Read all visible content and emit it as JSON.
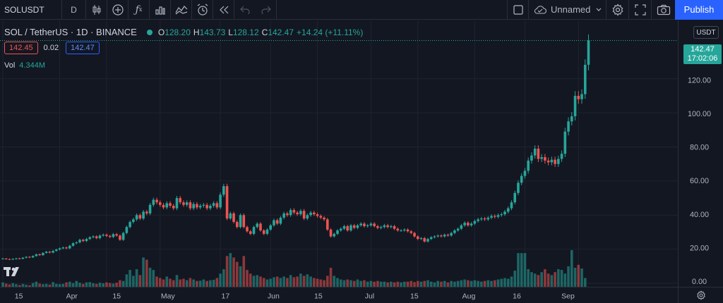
{
  "toolbar": {
    "symbol": "SOLUSDT",
    "interval": "D",
    "icons": [
      "candles-icon",
      "plus-circle-icon",
      "fx-icon",
      "bar-chart-icon",
      "compare-icon",
      "alert-icon",
      "replay-icon",
      "undo-icon",
      "redo-icon"
    ],
    "layout_name": "Unnamed",
    "publish_label": "Publish"
  },
  "legend": {
    "title": "SOL / TetherUS · 1D · BINANCE",
    "open_label": "O",
    "open": "128.20",
    "high_label": "H",
    "high": "143.73",
    "low_label": "L",
    "low": "128.12",
    "close_label": "C",
    "close": "142.47",
    "change": "+14.24 (+11.11%)"
  },
  "quotes": {
    "bid": "142.45",
    "spread": "0.02",
    "ask": "142.47"
  },
  "volume": {
    "label": "Vol",
    "value": "4.344M"
  },
  "price_scale": {
    "currency": "USDT",
    "last_price": "142.47",
    "countdown": "17:02:06"
  },
  "colors": {
    "up": "#26a69a",
    "down": "#ef5350",
    "accent": "#2962ff",
    "bg": "#131722",
    "grid": "#1f2330"
  },
  "chart_data": {
    "type": "candlestick",
    "title": "SOL / TetherUS · 1D · BINANCE",
    "y_ticks": [
      "0.00",
      "20.00",
      "40.00",
      "60.00",
      "80.00",
      "100.00",
      "120.00"
    ],
    "ylim": [
      0,
      153
    ],
    "x_ticks": [
      {
        "label": "15",
        "i": 0
      },
      {
        "label": "Apr",
        "i": 17
      },
      {
        "label": "15",
        "i": 31
      },
      {
        "label": "May",
        "i": 47
      },
      {
        "label": "17",
        "i": 65
      },
      {
        "label": "Jun",
        "i": 80
      },
      {
        "label": "15",
        "i": 94
      },
      {
        "label": "Jul",
        "i": 110
      },
      {
        "label": "15",
        "i": 124
      },
      {
        "label": "Aug",
        "i": 141
      },
      {
        "label": "16",
        "i": 156
      },
      {
        "label": "Sep",
        "i": 172
      }
    ],
    "grid": true,
    "closes": [
      14.5,
      14.2,
      14.0,
      14.3,
      14.6,
      14.4,
      15.0,
      15.5,
      15.2,
      16.0,
      17.0,
      16.5,
      17.8,
      18.5,
      18.0,
      19.0,
      19.8,
      20.5,
      21.0,
      20.5,
      22.0,
      23.5,
      24.0,
      25.5,
      24.8,
      26.0,
      27.0,
      27.5,
      26.5,
      28.0,
      28.5,
      27.8,
      27.2,
      28.8,
      28.0,
      25.5,
      29.5,
      33.0,
      36.0,
      37.5,
      40.0,
      38.0,
      42.0,
      41.0,
      46.0,
      49.0,
      47.5,
      46.0,
      44.5,
      47.0,
      45.5,
      44.0,
      50.0,
      47.5,
      46.0,
      47.5,
      44.0,
      46.5,
      44.5,
      45.5,
      46.0,
      44.0,
      45.5,
      47.0,
      44.5,
      52.0,
      57.0,
      38.0,
      41.0,
      36.0,
      33.0,
      40.0,
      33.0,
      30.5,
      29.0,
      33.0,
      35.0,
      31.0,
      29.0,
      31.5,
      34.0,
      37.0,
      35.0,
      38.5,
      41.0,
      40.0,
      43.0,
      41.5,
      40.5,
      42.5,
      38.0,
      40.0,
      41.5,
      40.5,
      39.5,
      38.5,
      37.5,
      31.5,
      27.5,
      29.0,
      31.0,
      32.0,
      33.5,
      31.0,
      34.0,
      32.5,
      34.0,
      35.0,
      33.5,
      34.0,
      35.0,
      33.5,
      32.5,
      33.0,
      34.0,
      33.0,
      33.5,
      32.0,
      31.0,
      31.0,
      31.5,
      30.5,
      29.5,
      27.5,
      26.0,
      26.5,
      24.5,
      26.0,
      27.0,
      27.5,
      28.0,
      27.5,
      28.5,
      28.0,
      29.5,
      31.0,
      32.0,
      34.0,
      35.5,
      34.0,
      35.0,
      36.5,
      37.5,
      38.0,
      37.5,
      38.5,
      39.5,
      39.0,
      40.0,
      40.5,
      42.0,
      44.0,
      47.5,
      53.0,
      59.0,
      63.0,
      66.0,
      72.0,
      75.0,
      79.0,
      73.0,
      74.0,
      72.0,
      71.0,
      72.5,
      70.0,
      73.0,
      76.0,
      89.0,
      95.0,
      98.0,
      110.0,
      108.0,
      111.0,
      128.2,
      142.47
    ],
    "volumes": [
      3.0,
      2.2,
      1.6,
      2.5,
      1.8,
      1.2,
      2.0,
      1.4,
      1.0,
      2.6,
      3.5,
      2.2,
      1.8,
      2.0,
      1.5,
      3.2,
      2.0,
      1.8,
      2.0,
      3.0,
      3.5,
      2.5,
      4.0,
      2.8,
      2.0,
      3.0,
      3.2,
      2.5,
      2.0,
      2.8,
      2.4,
      3.0,
      2.6,
      2.2,
      2.8,
      4.5,
      4.0,
      8.5,
      11.5,
      7.5,
      12.0,
      8.0,
      20.0,
      18.5,
      13.0,
      11.5,
      7.0,
      6.0,
      5.0,
      7.0,
      5.5,
      4.5,
      8.0,
      5.0,
      5.5,
      4.5,
      6.0,
      5.0,
      4.0,
      4.2,
      5.0,
      4.0,
      4.5,
      4.8,
      6.0,
      9.0,
      12.0,
      21.0,
      23.0,
      20.0,
      17.0,
      14.0,
      21.0,
      11.5,
      9.0,
      7.5,
      8.0,
      7.0,
      6.0,
      5.0,
      5.5,
      6.5,
      7.0,
      6.0,
      7.0,
      6.0,
      8.0,
      6.5,
      7.0,
      9.0,
      7.5,
      8.5,
      7.0,
      6.0,
      5.5,
      5.0,
      4.5,
      7.5,
      13.0,
      7.5,
      6.0,
      5.0,
      4.5,
      5.0,
      4.5,
      4.0,
      5.0,
      4.0,
      4.5,
      3.5,
      4.0,
      3.5,
      4.0,
      3.5,
      3.5,
      3.0,
      3.5,
      3.0,
      3.5,
      3.0,
      3.5,
      3.5,
      4.0,
      3.2,
      4.0,
      3.5,
      4.0,
      4.5,
      3.5,
      3.0,
      4.0,
      3.5,
      4.0,
      3.0,
      4.0,
      3.5,
      4.0,
      4.5,
      5.0,
      4.5,
      4.0,
      4.5,
      4.0,
      3.5,
      4.0,
      4.5,
      4.0,
      4.5,
      5.0,
      5.5,
      6.0,
      5.5,
      7.0,
      11.0,
      23.0,
      23.0,
      23.0,
      12.0,
      10.0,
      9.0,
      8.0,
      10.0,
      12.0,
      9.0,
      8.0,
      10.0,
      12.0,
      11.5,
      9.0,
      14.0,
      25.0,
      13.0,
      15.0,
      12.5,
      6.0
    ]
  }
}
